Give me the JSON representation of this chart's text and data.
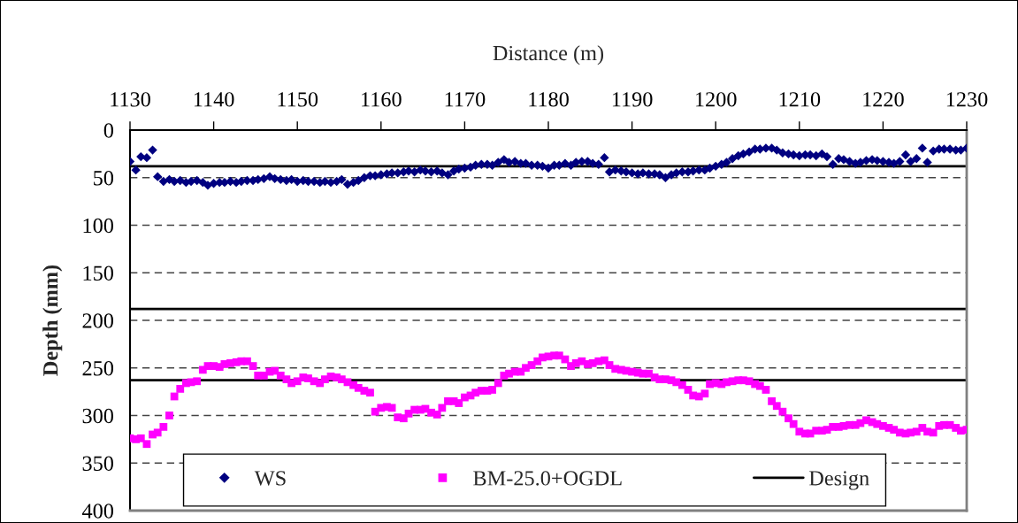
{
  "chart_data": {
    "type": "scatter",
    "xlabel": "Distance (m)",
    "ylabel": "Depth (mm)",
    "x": [
      1130.0,
      1130.7,
      1131.3,
      1132.0,
      1132.7,
      1133.3,
      1134.0,
      1134.7,
      1135.3,
      1136.0,
      1136.7,
      1137.3,
      1138.0,
      1138.7,
      1139.3,
      1140.0,
      1140.7,
      1141.3,
      1142.0,
      1142.7,
      1143.3,
      1144.0,
      1144.7,
      1145.3,
      1146.0,
      1146.7,
      1147.3,
      1148.0,
      1148.7,
      1149.3,
      1150.0,
      1150.7,
      1151.3,
      1152.0,
      1152.7,
      1153.3,
      1154.0,
      1154.7,
      1155.3,
      1156.0,
      1156.7,
      1157.3,
      1158.0,
      1158.7,
      1159.3,
      1160.0,
      1160.7,
      1161.3,
      1162.0,
      1162.7,
      1163.3,
      1164.0,
      1164.7,
      1165.3,
      1166.0,
      1166.7,
      1167.3,
      1168.0,
      1168.7,
      1169.3,
      1170.0,
      1170.7,
      1171.3,
      1172.0,
      1172.7,
      1173.3,
      1174.0,
      1174.7,
      1175.3,
      1176.0,
      1176.7,
      1177.3,
      1178.0,
      1178.7,
      1179.3,
      1180.0,
      1180.7,
      1181.3,
      1182.0,
      1182.7,
      1183.3,
      1184.0,
      1184.7,
      1185.3,
      1186.0,
      1186.7,
      1187.3,
      1188.0,
      1188.7,
      1189.3,
      1190.0,
      1190.7,
      1191.3,
      1192.0,
      1192.7,
      1193.3,
      1194.0,
      1194.7,
      1195.3,
      1196.0,
      1196.7,
      1197.3,
      1198.0,
      1198.7,
      1199.3,
      1200.0,
      1200.7,
      1201.3,
      1202.0,
      1202.7,
      1203.3,
      1204.0,
      1204.7,
      1205.3,
      1206.0,
      1206.7,
      1207.3,
      1208.0,
      1208.7,
      1209.3,
      1210.0,
      1210.7,
      1211.3,
      1212.0,
      1212.7,
      1213.3,
      1214.0,
      1214.7,
      1215.3,
      1216.0,
      1216.7,
      1217.3,
      1218.0,
      1218.7,
      1219.3,
      1220.0,
      1220.7,
      1221.3,
      1222.0,
      1222.7,
      1223.3,
      1224.0,
      1224.7,
      1225.3,
      1226.0,
      1226.7,
      1227.3,
      1228.0,
      1228.7,
      1229.3,
      1230.0
    ],
    "xlim": [
      1130,
      1230
    ],
    "xticks": [
      1130,
      1140,
      1150,
      1160,
      1170,
      1180,
      1190,
      1200,
      1210,
      1220,
      1230
    ],
    "ylim": [
      400,
      0
    ],
    "yticks": [
      0,
      50,
      100,
      150,
      200,
      250,
      300,
      350,
      400
    ],
    "grid": "y",
    "legend": "bottom",
    "series": [
      {
        "name": "WS",
        "color": "#000080",
        "marker": "diamond",
        "values": [
          33,
          42,
          28,
          29,
          21,
          49,
          54,
          52,
          54,
          53,
          55,
          54,
          53,
          55,
          58,
          56,
          55,
          55,
          54,
          55,
          54,
          53,
          53,
          52,
          51,
          49,
          51,
          52,
          53,
          52,
          54,
          53,
          54,
          54,
          55,
          54,
          55,
          54,
          52,
          57,
          55,
          53,
          50,
          48,
          48,
          47,
          46,
          45,
          45,
          44,
          43,
          44,
          42,
          43,
          44,
          43,
          45,
          47,
          43,
          41,
          40,
          39,
          37,
          36,
          36,
          37,
          34,
          31,
          34,
          33,
          35,
          35,
          37,
          37,
          38,
          40,
          37,
          37,
          35,
          37,
          34,
          33,
          33,
          35,
          36,
          29,
          44,
          42,
          43,
          44,
          45,
          46,
          45,
          46,
          46,
          47,
          50,
          47,
          45,
          44,
          44,
          43,
          42,
          42,
          40,
          38,
          36,
          34,
          30,
          27,
          25,
          23,
          20,
          20,
          19,
          19,
          21,
          24,
          25,
          26,
          27,
          26,
          26,
          27,
          25,
          28,
          36,
          30,
          31,
          33,
          35,
          34,
          32,
          31,
          32,
          33,
          34,
          35,
          33,
          26,
          33,
          30,
          19,
          34,
          22,
          20,
          20,
          20,
          21,
          21,
          19
        ]
      },
      {
        "name": "BM-25.0+OGDL",
        "color": "#ff00ff",
        "marker": "square",
        "values": [
          324,
          325,
          324,
          330,
          320,
          318,
          312,
          300,
          280,
          272,
          266,
          265,
          264,
          252,
          248,
          248,
          249,
          246,
          245,
          244,
          243,
          243,
          248,
          258,
          258,
          254,
          253,
          258,
          262,
          266,
          264,
          260,
          261,
          264,
          266,
          262,
          259,
          260,
          262,
          265,
          268,
          271,
          274,
          276,
          296,
          292,
          291,
          292,
          302,
          303,
          298,
          294,
          294,
          293,
          297,
          299,
          292,
          285,
          285,
          287,
          281,
          279,
          276,
          274,
          274,
          273,
          266,
          258,
          256,
          254,
          254,
          250,
          247,
          243,
          239,
          238,
          237,
          237,
          241,
          248,
          245,
          243,
          246,
          245,
          243,
          242,
          247,
          251,
          252,
          253,
          254,
          255,
          256,
          256,
          260,
          262,
          262,
          263,
          265,
          268,
          273,
          279,
          280,
          277,
          267,
          266,
          267,
          265,
          264,
          263,
          263,
          264,
          267,
          269,
          273,
          285,
          290,
          296,
          303,
          309,
          317,
          319,
          319,
          316,
          316,
          315,
          312,
          312,
          311,
          310,
          310,
          308,
          305,
          307,
          309,
          311,
          313,
          315,
          318,
          319,
          318,
          317,
          313,
          317,
          318,
          311,
          310,
          310,
          313,
          316,
          315
        ]
      }
    ],
    "ref_lines": [
      {
        "axis": "y",
        "value": 38,
        "label": "Design",
        "color": "#000000",
        "line_style": "solid"
      },
      {
        "axis": "y",
        "value": 188,
        "color": "#000000",
        "line_style": "solid"
      },
      {
        "axis": "y",
        "value": 263,
        "color": "#000000",
        "line_style": "solid"
      }
    ]
  }
}
